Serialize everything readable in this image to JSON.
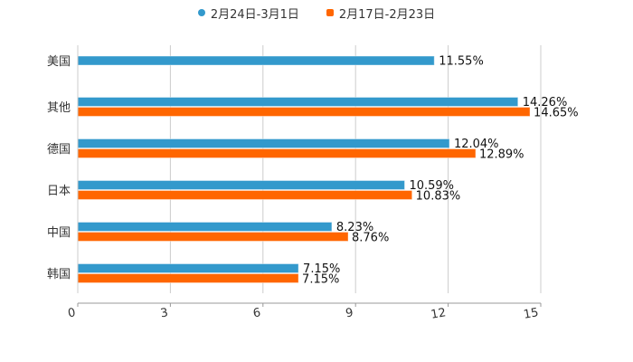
{
  "legend": {
    "items": [
      {
        "label": "2月24日-3月1日",
        "color": "#3399cc",
        "marker": "circle"
      },
      {
        "label": "2月17日-2月23日",
        "color": "#ff6600",
        "marker": "square"
      }
    ]
  },
  "chart_data": {
    "type": "bar",
    "orientation": "horizontal",
    "title": "",
    "xlabel": "",
    "ylabel": "",
    "categories": [
      "美国",
      "其他",
      "德国",
      "日本",
      "中国",
      "韩国"
    ],
    "series": [
      {
        "name": "2月24日-3月1日",
        "color": "#3399cc",
        "values": [
          11.55,
          14.26,
          12.04,
          10.59,
          8.23,
          7.15
        ],
        "labels": [
          "11.55%",
          "14.26%",
          "12.04%",
          "10.59%",
          "8.23%",
          "7.15%"
        ]
      },
      {
        "name": "2月17日-2月23日",
        "color": "#ff6600",
        "values": [
          null,
          14.65,
          12.89,
          10.83,
          8.76,
          7.15
        ],
        "labels": [
          null,
          "14.65%",
          "12.89%",
          "10.83%",
          "8.76%",
          "7.15%"
        ]
      }
    ],
    "xlim": [
      0,
      15
    ],
    "xticks": [
      0,
      3,
      6,
      9,
      12,
      15
    ],
    "grid": true,
    "legend_position": "top"
  }
}
